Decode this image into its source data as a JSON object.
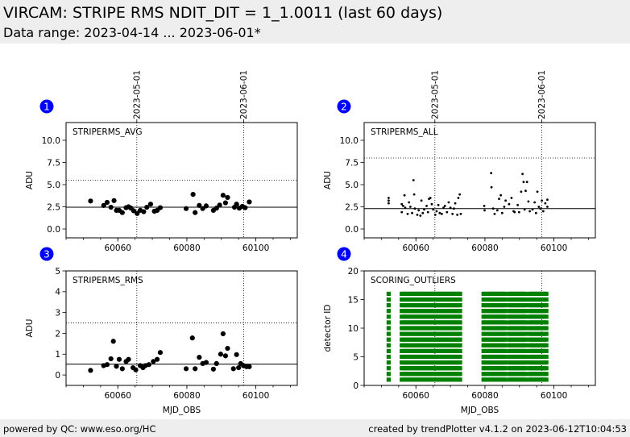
{
  "header": {
    "title": "VIRCAM: STRIPE RMS NDIT_DIT = 1_1.0011 (last 60 days)",
    "subtitle": "Data range: 2023-04-14 ... 2023-06-01*"
  },
  "footer": {
    "left": "powered by QC: www.eso.org/HC",
    "right": "created by trendPlotter v4.1.2 on 2023-06-12T10:04:53"
  },
  "date_markers": [
    {
      "label": "2023-05-01",
      "mjd": 60065.5
    },
    {
      "label": "2023-06-01",
      "mjd": 60096.5
    }
  ],
  "colors": {
    "badge": "#0000ff",
    "points": "#000000",
    "outliers": "#008000"
  },
  "chart_data": [
    {
      "id": 1,
      "badge": "1",
      "type": "scatter",
      "title": "STRIPERMS_AVG",
      "xlabel": "",
      "ylabel": "ADU",
      "xlim": [
        60045,
        60112
      ],
      "ylim": [
        -1,
        12
      ],
      "yticks": [
        0.0,
        2.5,
        5.0,
        7.5,
        10.0
      ],
      "ytick_labels": [
        "0.0",
        "2.5",
        "5.0",
        "7.5",
        "10.0"
      ],
      "xticks": [
        60060,
        60080,
        60100
      ],
      "xtick_labels": [
        "60060",
        "60080",
        "60100"
      ],
      "hlines": [
        {
          "y": 2.45,
          "style": "solid"
        },
        {
          "y": 5.5,
          "style": "dotted"
        }
      ],
      "marker": "dot",
      "points": [
        [
          60052.1,
          3.15
        ],
        [
          60055.9,
          2.65
        ],
        [
          60056.9,
          3.0
        ],
        [
          60058.0,
          2.45
        ],
        [
          60058.9,
          3.2
        ],
        [
          60059.6,
          2.1
        ],
        [
          60060.4,
          2.1
        ],
        [
          60061.3,
          1.85
        ],
        [
          60062.4,
          2.4
        ],
        [
          60063.1,
          2.5
        ],
        [
          60063.8,
          2.35
        ],
        [
          60064.6,
          2.05
        ],
        [
          60065.6,
          1.75
        ],
        [
          60066.5,
          2.1
        ],
        [
          60067.5,
          1.95
        ],
        [
          60068.4,
          2.45
        ],
        [
          60069.5,
          2.8
        ],
        [
          60070.6,
          2.0
        ],
        [
          60071.4,
          2.1
        ],
        [
          60072.3,
          2.4
        ],
        [
          60079.8,
          2.3
        ],
        [
          60081.8,
          3.9
        ],
        [
          60082.4,
          1.85
        ],
        [
          60083.6,
          2.65
        ],
        [
          60084.6,
          2.3
        ],
        [
          60085.6,
          2.6
        ],
        [
          60087.7,
          2.1
        ],
        [
          60088.6,
          2.35
        ],
        [
          60089.5,
          2.7
        ],
        [
          60090.5,
          3.8
        ],
        [
          60091.2,
          2.95
        ],
        [
          60091.8,
          3.55
        ],
        [
          60093.8,
          2.45
        ],
        [
          60094.4,
          2.8
        ],
        [
          60095.2,
          2.35
        ],
        [
          60096.1,
          2.55
        ],
        [
          60096.9,
          2.4
        ],
        [
          60098.1,
          3.05
        ]
      ]
    },
    {
      "id": 2,
      "badge": "2",
      "type": "scatter",
      "title": "STRIPERMS_ALL",
      "xlabel": "",
      "ylabel": "ADU",
      "xlim": [
        60045,
        60112
      ],
      "ylim": [
        -1,
        12
      ],
      "yticks": [
        0.0,
        2.5,
        5.0,
        7.5,
        10.0
      ],
      "ytick_labels": [
        "0.0",
        "2.5",
        "5.0",
        "7.5",
        "10.0"
      ],
      "xticks": [
        60060,
        60080,
        60100
      ],
      "xtick_labels": [
        "60060",
        "60080",
        "60100"
      ],
      "hlines": [
        {
          "y": 2.3,
          "style": "solid"
        },
        {
          "y": 8.0,
          "style": "dotted"
        }
      ],
      "marker": "small",
      "points": [
        [
          60052.1,
          3.5
        ],
        [
          60052.1,
          3.2
        ],
        [
          60052.1,
          2.9
        ],
        [
          60055.9,
          1.9
        ],
        [
          60055.9,
          2.8
        ],
        [
          60056.3,
          2.6
        ],
        [
          60056.7,
          3.8
        ],
        [
          60056.9,
          2.4
        ],
        [
          60057.6,
          1.7
        ],
        [
          60058.0,
          3.0
        ],
        [
          60058.4,
          2.5
        ],
        [
          60058.9,
          1.8
        ],
        [
          60059.3,
          5.5
        ],
        [
          60059.5,
          3.9
        ],
        [
          60059.7,
          2.3
        ],
        [
          60060.4,
          1.6
        ],
        [
          60060.8,
          2.1
        ],
        [
          60061.3,
          1.5
        ],
        [
          60061.6,
          3.2
        ],
        [
          60062.0,
          1.8
        ],
        [
          60062.4,
          2.2
        ],
        [
          60063.1,
          2.6
        ],
        [
          60063.5,
          1.9
        ],
        [
          60063.8,
          3.4
        ],
        [
          60064.2,
          3.5
        ],
        [
          60064.6,
          2.8
        ],
        [
          60065.0,
          2.2
        ],
        [
          60065.6,
          1.6
        ],
        [
          60066.0,
          2.0
        ],
        [
          60066.5,
          2.7
        ],
        [
          60066.9,
          1.8
        ],
        [
          60067.5,
          1.7
        ],
        [
          60068.0,
          2.4
        ],
        [
          60068.4,
          2.6
        ],
        [
          60069.0,
          1.9
        ],
        [
          60069.5,
          3.0
        ],
        [
          60070.0,
          2.4
        ],
        [
          60070.6,
          1.7
        ],
        [
          60071.0,
          2.3
        ],
        [
          60071.4,
          2.9
        ],
        [
          60072.0,
          1.6
        ],
        [
          60072.3,
          3.5
        ],
        [
          60072.7,
          3.9
        ],
        [
          60073.0,
          1.7
        ],
        [
          60079.8,
          2.6
        ],
        [
          60079.9,
          2.1
        ],
        [
          60081.8,
          6.3
        ],
        [
          60081.9,
          4.7
        ],
        [
          60082.4,
          2.3
        ],
        [
          60082.8,
          1.7
        ],
        [
          60083.6,
          2.1
        ],
        [
          60084.1,
          3.4
        ],
        [
          60084.6,
          3.8
        ],
        [
          60085.0,
          1.8
        ],
        [
          60085.6,
          2.5
        ],
        [
          60086.0,
          3.2
        ],
        [
          60087.0,
          2.8
        ],
        [
          60087.7,
          3.5
        ],
        [
          60088.3,
          2.0
        ],
        [
          60088.6,
          1.9
        ],
        [
          60089.5,
          2.7
        ],
        [
          60089.9,
          1.9
        ],
        [
          60090.5,
          4.2
        ],
        [
          60090.9,
          6.2
        ],
        [
          60091.2,
          5.3
        ],
        [
          60091.5,
          2.2
        ],
        [
          60091.8,
          4.3
        ],
        [
          60092.2,
          5.3
        ],
        [
          60092.6,
          3.1
        ],
        [
          60093.0,
          2.0
        ],
        [
          60093.8,
          2.2
        ],
        [
          60094.4,
          3.0
        ],
        [
          60094.8,
          1.8
        ],
        [
          60095.2,
          4.2
        ],
        [
          60095.6,
          2.5
        ],
        [
          60096.1,
          2.3
        ],
        [
          60096.5,
          3.2
        ],
        [
          60096.9,
          2.0
        ],
        [
          60097.5,
          2.9
        ],
        [
          60098.1,
          3.3
        ],
        [
          60098.1,
          2.5
        ]
      ]
    },
    {
      "id": 3,
      "badge": "3",
      "type": "scatter",
      "title": "STRIPERMS_RMS",
      "xlabel": "MJD_OBS",
      "ylabel": "ADU",
      "xlim": [
        60045,
        60112
      ],
      "ylim": [
        -0.5,
        5
      ],
      "yticks": [
        0,
        1,
        2,
        3,
        4,
        5
      ],
      "ytick_labels": [
        "0",
        "1",
        "2",
        "3",
        "4",
        "5"
      ],
      "xticks": [
        60060,
        60080,
        60100
      ],
      "xtick_labels": [
        "60060",
        "60080",
        "60100"
      ],
      "hlines": [
        {
          "y": 0.52,
          "style": "solid"
        },
        {
          "y": 2.5,
          "style": "dotted"
        }
      ],
      "marker": "dot",
      "points": [
        [
          60052.1,
          0.22
        ],
        [
          60055.9,
          0.45
        ],
        [
          60056.9,
          0.5
        ],
        [
          60058.0,
          0.78
        ],
        [
          60058.7,
          1.62
        ],
        [
          60059.6,
          0.42
        ],
        [
          60060.4,
          0.75
        ],
        [
          60061.3,
          0.3
        ],
        [
          60062.4,
          0.65
        ],
        [
          60063.1,
          0.75
        ],
        [
          60064.4,
          0.35
        ],
        [
          60065.2,
          0.25
        ],
        [
          60066.5,
          0.45
        ],
        [
          60067.3,
          0.35
        ],
        [
          60068.0,
          0.45
        ],
        [
          60069.0,
          0.5
        ],
        [
          60070.3,
          0.65
        ],
        [
          60071.4,
          0.75
        ],
        [
          60072.3,
          1.08
        ],
        [
          60079.8,
          0.3
        ],
        [
          60081.6,
          1.78
        ],
        [
          60082.4,
          0.3
        ],
        [
          60083.6,
          0.85
        ],
        [
          60084.6,
          0.55
        ],
        [
          60085.6,
          0.6
        ],
        [
          60087.7,
          0.28
        ],
        [
          60088.6,
          0.55
        ],
        [
          60089.8,
          1.0
        ],
        [
          60090.5,
          1.98
        ],
        [
          60091.2,
          0.92
        ],
        [
          60091.8,
          1.28
        ],
        [
          60093.5,
          0.3
        ],
        [
          60094.4,
          0.98
        ],
        [
          60095.0,
          0.35
        ],
        [
          60095.6,
          0.55
        ],
        [
          60096.4,
          0.45
        ],
        [
          60097.3,
          0.4
        ],
        [
          60098.1,
          0.4
        ]
      ]
    },
    {
      "id": 4,
      "badge": "4",
      "type": "scatter",
      "title": "SCORING_OUTLIERS",
      "xlabel": "MJD_OBS",
      "ylabel": "detector ID",
      "xlim": [
        60045,
        60112
      ],
      "ylim": [
        0,
        20
      ],
      "yticks": [
        0,
        5,
        10,
        15,
        20
      ],
      "ytick_labels": [
        "0",
        "5",
        "10",
        "15",
        "20"
      ],
      "xticks": [
        60060,
        60080,
        60100
      ],
      "xtick_labels": [
        "60060",
        "60080",
        "60100"
      ],
      "hlines": [],
      "marker": "square",
      "detector_ids": [
        1,
        2,
        3,
        4,
        5,
        6,
        7,
        8,
        9,
        10,
        11,
        12,
        13,
        14,
        15,
        16
      ],
      "outlier_mjd": [
        60052.1,
        60055.9,
        60056.5,
        60057.1,
        60057.7,
        60058.4,
        60059.0,
        60059.6,
        60060.2,
        60060.8,
        60061.4,
        60062.0,
        60062.6,
        60063.2,
        60063.8,
        60064.4,
        60065.0,
        60065.6,
        60066.2,
        60066.8,
        60067.4,
        60068.0,
        60068.6,
        60069.2,
        60069.8,
        60070.4,
        60071.0,
        60071.6,
        60072.2,
        60072.8,
        60079.6,
        60080.1,
        60081.0,
        60081.6,
        60082.2,
        60082.8,
        60083.4,
        60084.0,
        60084.6,
        60085.2,
        60085.8,
        60087.0,
        60087.6,
        60088.2,
        60088.8,
        60089.4,
        60090.0,
        60090.6,
        60091.2,
        60091.8,
        60093.0,
        60093.6,
        60094.2,
        60094.8,
        60095.4,
        60096.0,
        60096.6,
        60097.2,
        60097.8
      ]
    }
  ]
}
